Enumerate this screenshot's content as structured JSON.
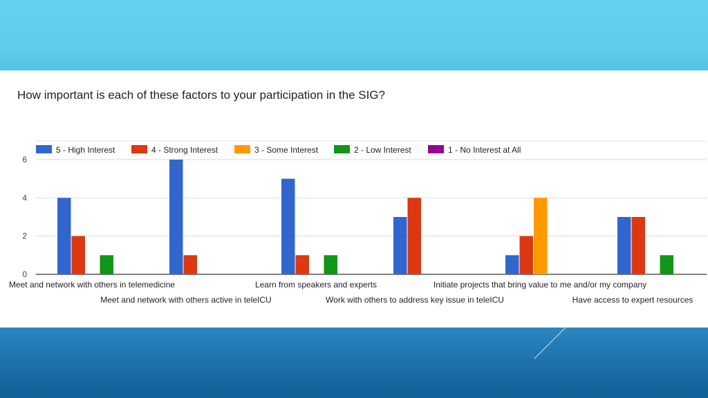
{
  "slide": {
    "question": "How important is each of these factors to your participation in the SIG?"
  },
  "colors": {
    "top_band": "#5ecfec",
    "bottom_band": "#1f73ad",
    "series": [
      "#3366cc",
      "#dc3912",
      "#ff9900",
      "#109618",
      "#990099"
    ]
  },
  "chart_data": {
    "type": "bar",
    "title": "How important is each of these factors to your participation in the SIG?",
    "categories": [
      "Meet and network with others in telemedicine",
      "Meet and network with others active in teleICU",
      "Learn from speakers and experts",
      "Work with others to address key issue in teleICU",
      "Initiate projects that bring value to me and/or my company",
      "Have access to expert resources"
    ],
    "series": [
      {
        "name": "5 - High Interest",
        "color": "#3366cc",
        "values": [
          4,
          6,
          5,
          3,
          1,
          3
        ]
      },
      {
        "name": "4 - Strong Interest",
        "color": "#dc3912",
        "values": [
          2,
          1,
          1,
          4,
          2,
          3
        ]
      },
      {
        "name": "3 - Some Interest",
        "color": "#ff9900",
        "values": [
          0,
          0,
          0,
          0,
          4,
          0
        ]
      },
      {
        "name": "2 - Low Interest",
        "color": "#109618",
        "values": [
          1,
          0,
          1,
          0,
          0,
          1
        ]
      },
      {
        "name": "1 - No Interest at All",
        "color": "#990099",
        "values": [
          0,
          0,
          0,
          0,
          0,
          0
        ]
      }
    ],
    "ylim": [
      0,
      6
    ],
    "yticks": [
      0,
      2,
      4,
      6
    ],
    "xlabel": "",
    "ylabel": "",
    "grid": true,
    "legend": "top"
  }
}
